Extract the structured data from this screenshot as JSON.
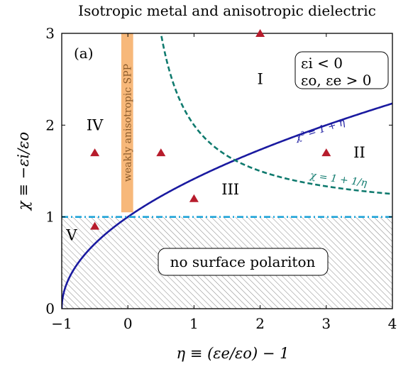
{
  "chart_data": {
    "type": "line",
    "title": "Isotropic metal and anisotropic dielectric",
    "xlabel": "η ≡ (εe/εo) − 1",
    "ylabel": "χ ≡ −εi/εo",
    "xlim": [
      -1,
      4
    ],
    "ylim": [
      0,
      3
    ],
    "xticks": [
      "−1",
      "0",
      "1",
      "2",
      "3",
      "4"
    ],
    "yticks": [
      "0",
      "1",
      "2",
      "3"
    ],
    "panel_label": "(a)",
    "conditions": [
      "εi < 0",
      "εo, εe > 0"
    ],
    "series": [
      {
        "name": "χ² = 1 + η",
        "color": "#1a1aa0",
        "style": "solid"
      },
      {
        "name": "χ = 1 + 1/η",
        "color": "#0f7a6e",
        "style": "dashed"
      },
      {
        "name": "",
        "color": "#1fa3d8",
        "style": "dashdot",
        "y": 1
      }
    ],
    "points": [
      {
        "x": 2,
        "y": 3
      },
      {
        "x": -0.5,
        "y": 1.7
      },
      {
        "x": 0.5,
        "y": 1.7
      },
      {
        "x": 3,
        "y": 1.7
      },
      {
        "x": 1,
        "y": 1.2
      },
      {
        "x": -0.5,
        "y": 0.9
      }
    ],
    "point_color": "#b71c2c",
    "regions": [
      {
        "label": "I",
        "x": 2,
        "y": 2.5
      },
      {
        "label": "II",
        "x": 3.5,
        "y": 1.7
      },
      {
        "label": "III",
        "x": 1.55,
        "y": 1.3
      },
      {
        "label": "IV",
        "x": -0.5,
        "y": 2.0
      },
      {
        "label": "V",
        "x": -0.85,
        "y": 0.8
      }
    ],
    "band": {
      "label": "weakly anisotropic SPP",
      "x": [
        -0.1,
        0.08
      ],
      "y": [
        1.05,
        3
      ],
      "color": "#f7b87a"
    },
    "no_polariton_label": "no surface polariton",
    "hatch_below_y": 1
  }
}
